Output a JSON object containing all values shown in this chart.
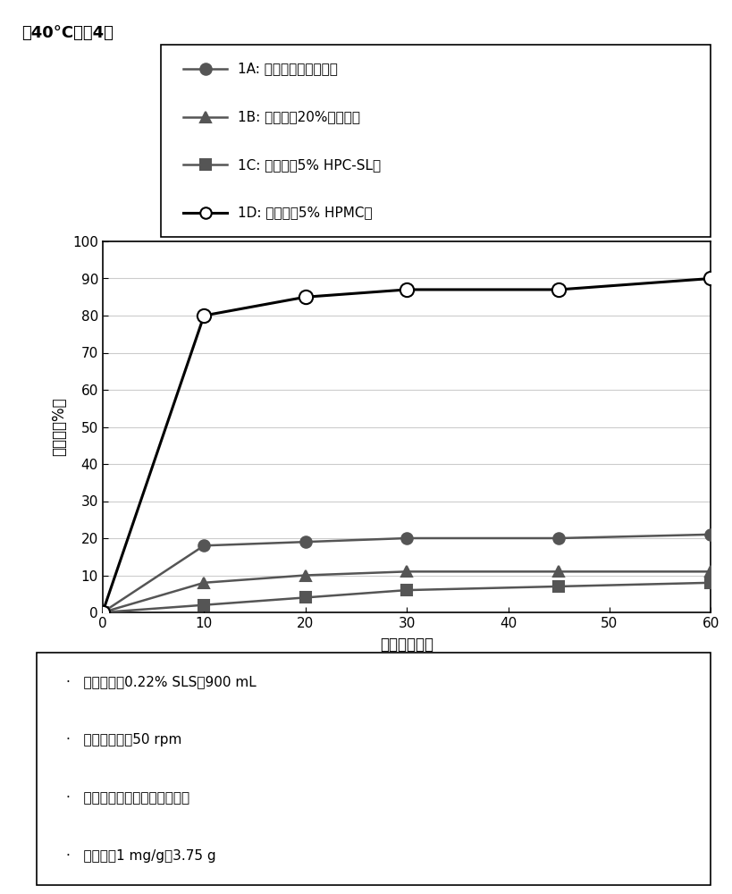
{
  "title": "于40°C保存4周",
  "xlabel": "时间（分钟）",
  "ylabel": "溶出度（%）",
  "xlim": [
    0,
    60
  ],
  "ylim": [
    0,
    100
  ],
  "xticks": [
    0,
    10,
    20,
    30,
    40,
    50,
    60
  ],
  "yticks": [
    0,
    10,
    20,
    30,
    40,
    50,
    60,
    70,
    80,
    90,
    100
  ],
  "series": [
    {
      "label": "1A: 混悬剂（仅纯化水）",
      "x": [
        0,
        10,
        20,
        30,
        45,
        60
      ],
      "y": [
        0,
        18,
        19,
        20,
        20,
        21
      ],
      "color": "#555555",
      "marker": "o",
      "marker_size": 9,
      "linewidth": 1.8,
      "filled": true
    },
    {
      "label": "1B: 混悬剂（20%木糖醇）",
      "x": [
        0,
        10,
        20,
        30,
        45,
        60
      ],
      "y": [
        0,
        8,
        10,
        11,
        11,
        11
      ],
      "color": "#555555",
      "marker": "^",
      "marker_size": 9,
      "linewidth": 1.8,
      "filled": true
    },
    {
      "label": "1C: 混悬剂（5% HPC-SL）",
      "x": [
        0,
        10,
        20,
        30,
        45,
        60
      ],
      "y": [
        0,
        2,
        4,
        6,
        7,
        8
      ],
      "color": "#555555",
      "marker": "s",
      "marker_size": 9,
      "linewidth": 1.8,
      "filled": true
    },
    {
      "label": "1D: 混悬剂（5% HPMC）",
      "x": [
        0,
        10,
        20,
        30,
        45,
        60
      ],
      "y": [
        0,
        80,
        85,
        87,
        87,
        90
      ],
      "color": "#000000",
      "marker": "o",
      "marker_size": 11,
      "linewidth": 2.2,
      "filled": false
    }
  ],
  "legend_entries": [
    {
      "label": "1A: 混悬剂（仅纯化水）",
      "color": "#555555",
      "marker": "o",
      "filled": true,
      "linewidth": 1.8
    },
    {
      "label": "1B: 混悬剂（20%木糖醇）",
      "color": "#555555",
      "marker": "^",
      "filled": true,
      "linewidth": 1.8
    },
    {
      "label": "1C: 混悬剂（5% HPC-SL）",
      "color": "#555555",
      "marker": "s",
      "filled": true,
      "linewidth": 1.8
    },
    {
      "label": "1D: 混悬剂（5% HPMC）",
      "color": "#000000",
      "marker": "o",
      "filled": false,
      "linewidth": 2.2
    }
  ],
  "footnotes": [
    "·   溶出介质：0.22% SLS，900 mL",
    "·   方法：桨法，50 rpm",
    "·   装入混悬剂后用溶出介质冲洗",
    "·   混悬剂）1 mg/g：3.75 g"
  ],
  "grid_color": "#cccccc",
  "background_color": "#ffffff"
}
